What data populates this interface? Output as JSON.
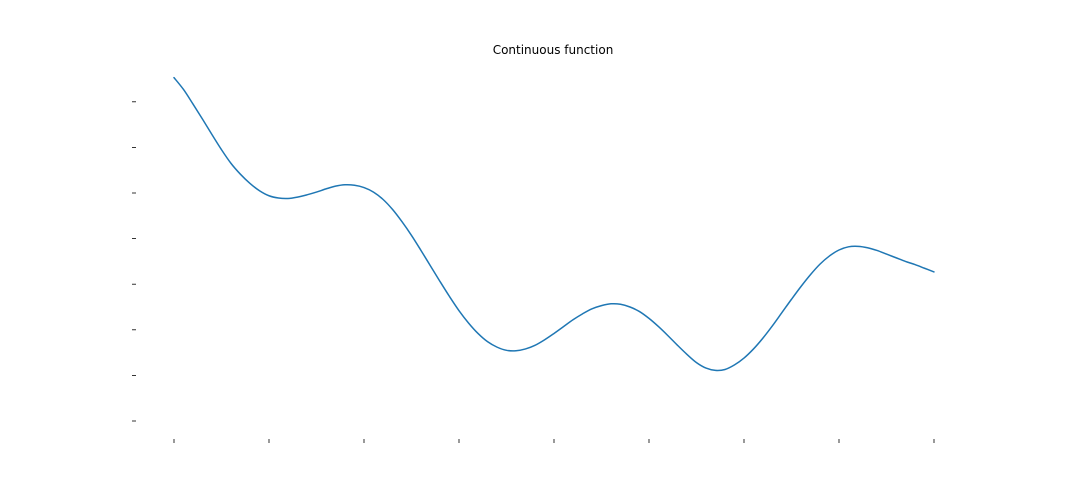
{
  "chart_data": {
    "type": "line",
    "title": "Continuous function",
    "xlabel": "",
    "ylabel": "",
    "xlim": [
      0,
      8
    ],
    "ylim": [
      0,
      7
    ],
    "xticks": [
      0,
      1,
      2,
      3,
      4,
      5,
      6,
      7,
      8
    ],
    "yticks": [
      0,
      1,
      2,
      3,
      4,
      5,
      6,
      7
    ],
    "xtick_labels_visible": false,
    "ytick_labels_visible": false,
    "spines_visible": false,
    "grid": false,
    "legend": "none",
    "series": [
      {
        "color": "#1f77b4",
        "x": [
          0,
          0.1,
          0.2,
          0.3,
          0.4,
          0.5,
          0.6,
          0.7,
          0.8,
          0.9,
          1.0,
          1.1,
          1.2,
          1.3,
          1.4,
          1.5,
          1.6,
          1.7,
          1.8,
          1.9,
          2.0,
          2.1,
          2.2,
          2.3,
          2.4,
          2.5,
          2.6,
          2.7,
          2.8,
          2.9,
          3.0,
          3.1,
          3.2,
          3.3,
          3.4,
          3.5,
          3.6,
          3.7,
          3.8,
          3.9,
          4.0,
          4.1,
          4.2,
          4.3,
          4.4,
          4.5,
          4.6,
          4.7,
          4.8,
          4.9,
          5.0,
          5.1,
          5.2,
          5.3,
          5.4,
          5.5,
          5.6,
          5.7,
          5.8,
          5.9,
          6.0,
          6.1,
          6.2,
          6.3,
          6.4,
          6.5,
          6.6,
          6.7,
          6.8,
          6.9,
          7.0,
          7.1,
          7.2,
          7.3,
          7.4,
          7.5,
          7.6,
          7.7,
          7.8,
          7.9,
          8.0
        ],
        "y": [
          7.53,
          7.27,
          6.95,
          6.62,
          6.28,
          5.95,
          5.65,
          5.41,
          5.21,
          5.05,
          4.94,
          4.89,
          4.88,
          4.91,
          4.96,
          5.02,
          5.09,
          5.15,
          5.18,
          5.17,
          5.12,
          5.02,
          4.86,
          4.64,
          4.37,
          4.07,
          3.74,
          3.4,
          3.06,
          2.73,
          2.42,
          2.15,
          1.92,
          1.74,
          1.62,
          1.55,
          1.54,
          1.58,
          1.66,
          1.78,
          1.92,
          2.07,
          2.22,
          2.35,
          2.46,
          2.53,
          2.57,
          2.56,
          2.5,
          2.4,
          2.25,
          2.07,
          1.87,
          1.66,
          1.46,
          1.28,
          1.16,
          1.11,
          1.13,
          1.23,
          1.38,
          1.58,
          1.82,
          2.09,
          2.38,
          2.67,
          2.95,
          3.21,
          3.44,
          3.62,
          3.75,
          3.82,
          3.83,
          3.8,
          3.74,
          3.66,
          3.58,
          3.5,
          3.43,
          3.35,
          3.27
        ]
      }
    ]
  }
}
